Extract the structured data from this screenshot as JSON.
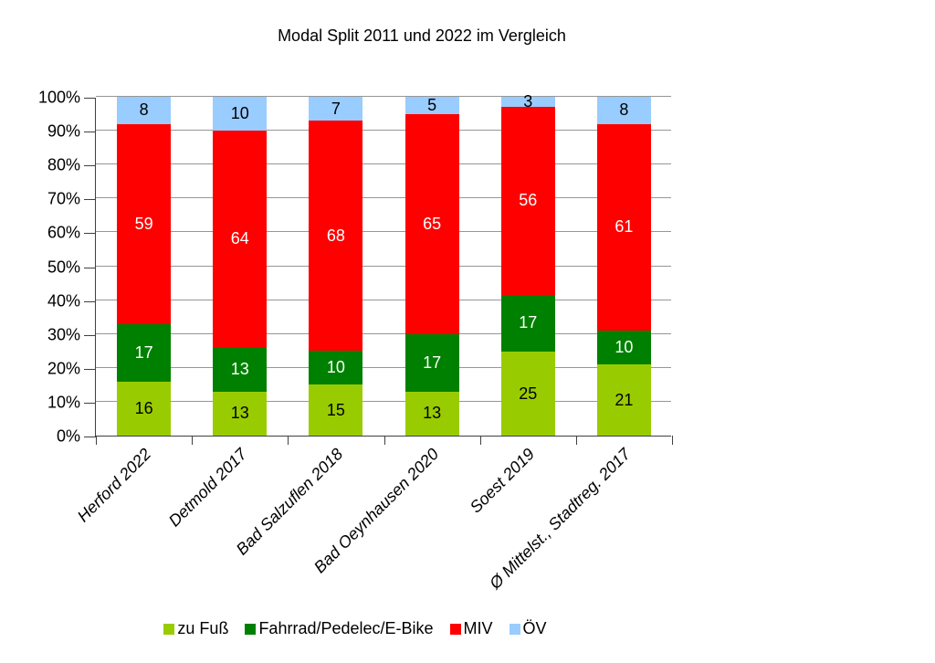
{
  "title": "Modal Split 2011 und 2022 im Vergleich",
  "chart_data": {
    "type": "bar",
    "stacked": true,
    "title": "Modal Split 2011 und 2022 im Vergleich",
    "categories": [
      "Herford 2022",
      "Detmold 2017",
      "Bad Salzuflen 2018",
      "Bad Oeynhausen 2020",
      "Soest 2019",
      "Ø Mittelst., Stadtreg. 2017"
    ],
    "series": [
      {
        "name": "zu Fuß",
        "color": "#99CC00",
        "label_color": "#000000",
        "values": [
          16,
          13,
          15,
          13,
          25,
          21
        ]
      },
      {
        "name": "Fahrrad/Pedelec/E-Bike",
        "color": "#008000",
        "label_color": "#FFFFFF",
        "values": [
          17,
          13,
          10,
          17,
          17,
          10
        ]
      },
      {
        "name": "MIV",
        "color": "#FF0000",
        "label_color": "#FFFFFF",
        "values": [
          59,
          64,
          68,
          65,
          56,
          61
        ]
      },
      {
        "name": "ÖV",
        "color": "#99CCFF",
        "label_color": "#000000",
        "values": [
          8,
          10,
          7,
          5,
          3,
          8
        ]
      }
    ],
    "y_ticks": [
      "100%",
      "90%",
      "80%",
      "70%",
      "60%",
      "50%",
      "40%",
      "30%",
      "20%",
      "10%",
      "0%"
    ],
    "ylim": [
      0,
      100
    ],
    "grid": true,
    "legend_position": "bottom"
  }
}
